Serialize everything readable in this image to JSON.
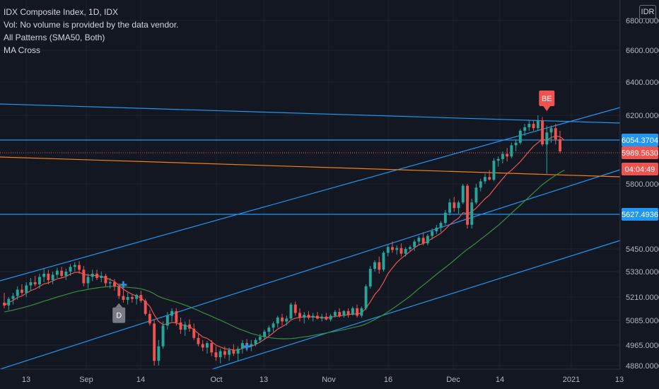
{
  "legend": {
    "title": "IDX Composite Index, 1D, IDX",
    "volume_note": "Vol: No volume is provided by the data vendor.",
    "patterns": "All Patterns (SMA50, Both)",
    "ma_cross": "MA Cross"
  },
  "currency": "IDR",
  "colors": {
    "background": "#131722",
    "up": "#26a69a",
    "down": "#ef5350",
    "trend_blue": "#2196f3",
    "orange": "#f57f17",
    "ma_fast": "#ef5350",
    "ma_slow": "#388e3c"
  },
  "chart_data": {
    "type": "candlestick",
    "y_ticks": [
      "6800.0000",
      "6600.0000",
      "6400.0000",
      "6200.0000",
      "5800.0000",
      "5450.0000",
      "5330.0000",
      "5210.0000",
      "5085.0000",
      "4965.0000",
      "4880.0000"
    ],
    "x_ticks": [
      "13",
      "Sep",
      "14",
      "Oct",
      "13",
      "Nov",
      "16",
      "Dec",
      "14",
      "2021",
      "13"
    ],
    "price_tags": [
      {
        "label": "6054.3704",
        "color": "#2196f3"
      },
      {
        "label": "5989.5630",
        "color": "#ef5350"
      },
      {
        "label": "04:04:49",
        "color": "#ef5350"
      },
      {
        "label": "5627.4936",
        "color": "#2196f3"
      }
    ],
    "markers": [
      {
        "label": "D",
        "kind": "pattern",
        "index": 26
      },
      {
        "label": "BE",
        "kind": "pattern",
        "index": 123
      }
    ],
    "candles": [
      {
        "o": 5180,
        "h": 5230,
        "l": 5150,
        "c": 5165
      },
      {
        "o": 5165,
        "h": 5210,
        "l": 5140,
        "c": 5200
      },
      {
        "o": 5200,
        "h": 5230,
        "l": 5170,
        "c": 5215
      },
      {
        "o": 5215,
        "h": 5260,
        "l": 5195,
        "c": 5245
      },
      {
        "o": 5245,
        "h": 5270,
        "l": 5220,
        "c": 5230
      },
      {
        "o": 5230,
        "h": 5280,
        "l": 5210,
        "c": 5265
      },
      {
        "o": 5265,
        "h": 5300,
        "l": 5240,
        "c": 5280
      },
      {
        "o": 5280,
        "h": 5310,
        "l": 5260,
        "c": 5270
      },
      {
        "o": 5270,
        "h": 5320,
        "l": 5250,
        "c": 5305
      },
      {
        "o": 5305,
        "h": 5345,
        "l": 5280,
        "c": 5320
      },
      {
        "o": 5320,
        "h": 5340,
        "l": 5270,
        "c": 5290
      },
      {
        "o": 5290,
        "h": 5330,
        "l": 5270,
        "c": 5315
      },
      {
        "o": 5315,
        "h": 5350,
        "l": 5300,
        "c": 5335
      },
      {
        "o": 5335,
        "h": 5355,
        "l": 5300,
        "c": 5310
      },
      {
        "o": 5310,
        "h": 5345,
        "l": 5290,
        "c": 5330
      },
      {
        "o": 5330,
        "h": 5370,
        "l": 5310,
        "c": 5355
      },
      {
        "o": 5355,
        "h": 5380,
        "l": 5330,
        "c": 5365
      },
      {
        "o": 5365,
        "h": 5385,
        "l": 5320,
        "c": 5340
      },
      {
        "o": 5340,
        "h": 5360,
        "l": 5260,
        "c": 5275
      },
      {
        "o": 5275,
        "h": 5320,
        "l": 5250,
        "c": 5305
      },
      {
        "o": 5305,
        "h": 5340,
        "l": 5285,
        "c": 5320
      },
      {
        "o": 5320,
        "h": 5340,
        "l": 5290,
        "c": 5300
      },
      {
        "o": 5300,
        "h": 5330,
        "l": 5280,
        "c": 5310
      },
      {
        "o": 5310,
        "h": 5320,
        "l": 5260,
        "c": 5275
      },
      {
        "o": 5275,
        "h": 5300,
        "l": 5250,
        "c": 5280
      },
      {
        "o": 5280,
        "h": 5295,
        "l": 5240,
        "c": 5260
      },
      {
        "o": 5260,
        "h": 5275,
        "l": 5200,
        "c": 5215
      },
      {
        "o": 5215,
        "h": 5250,
        "l": 5180,
        "c": 5195
      },
      {
        "o": 5195,
        "h": 5230,
        "l": 5170,
        "c": 5210
      },
      {
        "o": 5210,
        "h": 5220,
        "l": 5180,
        "c": 5200
      },
      {
        "o": 5200,
        "h": 5225,
        "l": 5170,
        "c": 5220
      },
      {
        "o": 5220,
        "h": 5240,
        "l": 5180,
        "c": 5190
      },
      {
        "o": 5190,
        "h": 5200,
        "l": 5110,
        "c": 5120
      },
      {
        "o": 5120,
        "h": 5140,
        "l": 5060,
        "c": 5070
      },
      {
        "o": 5070,
        "h": 5090,
        "l": 4880,
        "c": 4900
      },
      {
        "o": 4900,
        "h": 4990,
        "l": 4880,
        "c": 4960
      },
      {
        "o": 4960,
        "h": 5080,
        "l": 4950,
        "c": 5060
      },
      {
        "o": 5060,
        "h": 5130,
        "l": 5040,
        "c": 5110
      },
      {
        "o": 5110,
        "h": 5150,
        "l": 5080,
        "c": 5135
      },
      {
        "o": 5135,
        "h": 5150,
        "l": 5060,
        "c": 5075
      },
      {
        "o": 5075,
        "h": 5100,
        "l": 5020,
        "c": 5040
      },
      {
        "o": 5040,
        "h": 5080,
        "l": 5010,
        "c": 5065
      },
      {
        "o": 5065,
        "h": 5090,
        "l": 5030,
        "c": 5045
      },
      {
        "o": 5045,
        "h": 5070,
        "l": 4990,
        "c": 5000
      },
      {
        "o": 5000,
        "h": 5020,
        "l": 4960,
        "c": 4970
      },
      {
        "o": 4970,
        "h": 4990,
        "l": 4940,
        "c": 4955
      },
      {
        "o": 4955,
        "h": 4985,
        "l": 4930,
        "c": 4975
      },
      {
        "o": 4975,
        "h": 4990,
        "l": 4920,
        "c": 4935
      },
      {
        "o": 4935,
        "h": 4960,
        "l": 4900,
        "c": 4915
      },
      {
        "o": 4915,
        "h": 4950,
        "l": 4890,
        "c": 4940
      },
      {
        "o": 4940,
        "h": 4960,
        "l": 4910,
        "c": 4925
      },
      {
        "o": 4925,
        "h": 4955,
        "l": 4900,
        "c": 4945
      },
      {
        "o": 4945,
        "h": 4970,
        "l": 4920,
        "c": 4930
      },
      {
        "o": 4930,
        "h": 4960,
        "l": 4900,
        "c": 4950
      },
      {
        "o": 4950,
        "h": 4990,
        "l": 4930,
        "c": 4975
      },
      {
        "o": 4975,
        "h": 4995,
        "l": 4940,
        "c": 4960
      },
      {
        "o": 4960,
        "h": 4990,
        "l": 4940,
        "c": 4970
      },
      {
        "o": 4970,
        "h": 5000,
        "l": 4960,
        "c": 4990
      },
      {
        "o": 4990,
        "h": 5020,
        "l": 4975,
        "c": 5005
      },
      {
        "o": 5005,
        "h": 5040,
        "l": 4990,
        "c": 5030
      },
      {
        "o": 5030,
        "h": 5060,
        "l": 5010,
        "c": 5050
      },
      {
        "o": 5050,
        "h": 5080,
        "l": 5030,
        "c": 5070
      },
      {
        "o": 5070,
        "h": 5110,
        "l": 5050,
        "c": 5100
      },
      {
        "o": 5100,
        "h": 5120,
        "l": 5060,
        "c": 5080
      },
      {
        "o": 5080,
        "h": 5110,
        "l": 5060,
        "c": 5095
      },
      {
        "o": 5095,
        "h": 5180,
        "l": 5085,
        "c": 5170
      },
      {
        "o": 5170,
        "h": 5185,
        "l": 5110,
        "c": 5125
      },
      {
        "o": 5125,
        "h": 5150,
        "l": 5080,
        "c": 5100
      },
      {
        "o": 5100,
        "h": 5130,
        "l": 5070,
        "c": 5115
      },
      {
        "o": 5115,
        "h": 5135,
        "l": 5090,
        "c": 5100
      },
      {
        "o": 5100,
        "h": 5125,
        "l": 5080,
        "c": 5110
      },
      {
        "o": 5110,
        "h": 5130,
        "l": 5090,
        "c": 5095
      },
      {
        "o": 5095,
        "h": 5120,
        "l": 5080,
        "c": 5105
      },
      {
        "o": 5105,
        "h": 5125,
        "l": 5085,
        "c": 5090
      },
      {
        "o": 5090,
        "h": 5120,
        "l": 5080,
        "c": 5110
      },
      {
        "o": 5110,
        "h": 5140,
        "l": 5100,
        "c": 5130
      },
      {
        "o": 5130,
        "h": 5150,
        "l": 5100,
        "c": 5110
      },
      {
        "o": 5110,
        "h": 5140,
        "l": 5100,
        "c": 5135
      },
      {
        "o": 5135,
        "h": 5150,
        "l": 5100,
        "c": 5115
      },
      {
        "o": 5115,
        "h": 5160,
        "l": 5110,
        "c": 5150
      },
      {
        "o": 5150,
        "h": 5170,
        "l": 5100,
        "c": 5110
      },
      {
        "o": 5110,
        "h": 5160,
        "l": 5100,
        "c": 5150
      },
      {
        "o": 5150,
        "h": 5270,
        "l": 5140,
        "c": 5260
      },
      {
        "o": 5260,
        "h": 5360,
        "l": 5250,
        "c": 5345
      },
      {
        "o": 5345,
        "h": 5390,
        "l": 5330,
        "c": 5380
      },
      {
        "o": 5380,
        "h": 5410,
        "l": 5320,
        "c": 5340
      },
      {
        "o": 5340,
        "h": 5440,
        "l": 5330,
        "c": 5430
      },
      {
        "o": 5430,
        "h": 5470,
        "l": 5410,
        "c": 5460
      },
      {
        "o": 5460,
        "h": 5490,
        "l": 5430,
        "c": 5445
      },
      {
        "o": 5445,
        "h": 5470,
        "l": 5420,
        "c": 5455
      },
      {
        "o": 5455,
        "h": 5480,
        "l": 5410,
        "c": 5425
      },
      {
        "o": 5425,
        "h": 5460,
        "l": 5410,
        "c": 5450
      },
      {
        "o": 5450,
        "h": 5470,
        "l": 5440,
        "c": 5460
      },
      {
        "o": 5460,
        "h": 5500,
        "l": 5440,
        "c": 5490
      },
      {
        "o": 5490,
        "h": 5520,
        "l": 5470,
        "c": 5510
      },
      {
        "o": 5510,
        "h": 5540,
        "l": 5470,
        "c": 5480
      },
      {
        "o": 5480,
        "h": 5530,
        "l": 5470,
        "c": 5520
      },
      {
        "o": 5520,
        "h": 5560,
        "l": 5500,
        "c": 5545
      },
      {
        "o": 5545,
        "h": 5580,
        "l": 5530,
        "c": 5565
      },
      {
        "o": 5565,
        "h": 5600,
        "l": 5540,
        "c": 5590
      },
      {
        "o": 5590,
        "h": 5660,
        "l": 5580,
        "c": 5645
      },
      {
        "o": 5645,
        "h": 5720,
        "l": 5630,
        "c": 5700
      },
      {
        "o": 5700,
        "h": 5730,
        "l": 5650,
        "c": 5670
      },
      {
        "o": 5670,
        "h": 5710,
        "l": 5640,
        "c": 5700
      },
      {
        "o": 5700,
        "h": 5800,
        "l": 5690,
        "c": 5790
      },
      {
        "o": 5790,
        "h": 5800,
        "l": 5560,
        "c": 5580
      },
      {
        "o": 5580,
        "h": 5720,
        "l": 5560,
        "c": 5700
      },
      {
        "o": 5700,
        "h": 5800,
        "l": 5690,
        "c": 5780
      },
      {
        "o": 5780,
        "h": 5830,
        "l": 5760,
        "c": 5815
      },
      {
        "o": 5815,
        "h": 5860,
        "l": 5800,
        "c": 5840
      },
      {
        "o": 5840,
        "h": 5880,
        "l": 5820,
        "c": 5825
      },
      {
        "o": 5825,
        "h": 5950,
        "l": 5815,
        "c": 5935
      },
      {
        "o": 5935,
        "h": 5960,
        "l": 5900,
        "c": 5945
      },
      {
        "o": 5945,
        "h": 5990,
        "l": 5920,
        "c": 5975
      },
      {
        "o": 5975,
        "h": 6010,
        "l": 5930,
        "c": 5960
      },
      {
        "o": 5960,
        "h": 6040,
        "l": 5950,
        "c": 6025
      },
      {
        "o": 6025,
        "h": 6060,
        "l": 5990,
        "c": 6040
      },
      {
        "o": 6040,
        "h": 6120,
        "l": 6030,
        "c": 6110
      },
      {
        "o": 6110,
        "h": 6150,
        "l": 6080,
        "c": 6130
      },
      {
        "o": 6130,
        "h": 6170,
        "l": 6110,
        "c": 6150
      },
      {
        "o": 6150,
        "h": 6170,
        "l": 6110,
        "c": 6125
      },
      {
        "o": 6125,
        "h": 6200,
        "l": 6110,
        "c": 6170
      },
      {
        "o": 6170,
        "h": 6190,
        "l": 6020,
        "c": 6030
      },
      {
        "o": 6030,
        "h": 6140,
        "l": 5860,
        "c": 6100
      },
      {
        "o": 6100,
        "h": 6140,
        "l": 6040,
        "c": 6125
      },
      {
        "o": 6125,
        "h": 6150,
        "l": 6030,
        "c": 6060
      },
      {
        "o": 6060,
        "h": 6110,
        "l": 5980,
        "c": 5990
      }
    ],
    "ma_fast": [
      5165,
      5180,
      5192,
      5208,
      5215,
      5228,
      5240,
      5248,
      5260,
      5272,
      5277,
      5286,
      5296,
      5300,
      5307,
      5318,
      5326,
      5327,
      5317,
      5313,
      5313,
      5310,
      5308,
      5300,
      5293,
      5283,
      5265,
      5247,
      5234,
      5223,
      5215,
      5205,
      5185,
      5160,
      5115,
      5080,
      5065,
      5068,
      5075,
      5073,
      5064,
      5060,
      5055,
      5040,
      5022,
      5005,
      4998,
      4982,
      4965,
      4957,
      4950,
      4948,
      4945,
      4944,
      4952,
      4955,
      4960,
      4968,
      4980,
      4993,
      5008,
      5025,
      5043,
      5055,
      5067,
      5087,
      5097,
      5100,
      5105,
      5104,
      5104,
      5102,
      5101,
      5098,
      5101,
      5107,
      5108,
      5113,
      5115,
      5121,
      5118,
      5124,
      5150,
      5185,
      5222,
      5245,
      5280,
      5320,
      5350,
      5378,
      5400,
      5418,
      5437,
      5456,
      5472,
      5478,
      5492,
      5506,
      5520,
      5535,
      5556,
      5580,
      5600,
      5615,
      5645,
      5640,
      5650,
      5670,
      5695,
      5720,
      5740,
      5770,
      5800,
      5830,
      5860,
      5880,
      5905,
      5930,
      5960,
      5990,
      6020,
      6040,
      6060,
      6055,
      6070,
      6080,
      6075,
      6055
    ],
    "ma_slow": [
      5130,
      5135,
      5140,
      5146,
      5152,
      5158,
      5165,
      5172,
      5180,
      5188,
      5195,
      5202,
      5210,
      5216,
      5222,
      5228,
      5234,
      5239,
      5242,
      5246,
      5250,
      5253,
      5256,
      5258,
      5260,
      5261,
      5260,
      5258,
      5256,
      5254,
      5252,
      5249,
      5243,
      5236,
      5225,
      5213,
      5204,
      5197,
      5190,
      5183,
      5175,
      5167,
      5158,
      5148,
      5138,
      5127,
      5117,
      5107,
      5096,
      5086,
      5076,
      5066,
      5056,
      5046,
      5038,
      5030,
      5022,
      5016,
      5010,
      5006,
      5002,
      4999,
      4997,
      4996,
      4996,
      4997,
      4999,
      5002,
      5005,
      5008,
      5012,
      5016,
      5020,
      5024,
      5028,
      5032,
      5036,
      5040,
      5045,
      5050,
      5055,
      5060,
      5068,
      5078,
      5090,
      5102,
      5116,
      5131,
      5147,
      5163,
      5180,
      5197,
      5214,
      5232,
      5250,
      5266,
      5283,
      5300,
      5317,
      5334,
      5352,
      5370,
      5390,
      5410,
      5430,
      5448,
      5465,
      5483,
      5502,
      5520,
      5539,
      5558,
      5577,
      5598,
      5620,
      5642,
      5664,
      5686,
      5708,
      5730,
      5752,
      5774,
      5796,
      5815,
      5833,
      5850,
      5866,
      5880
    ]
  }
}
